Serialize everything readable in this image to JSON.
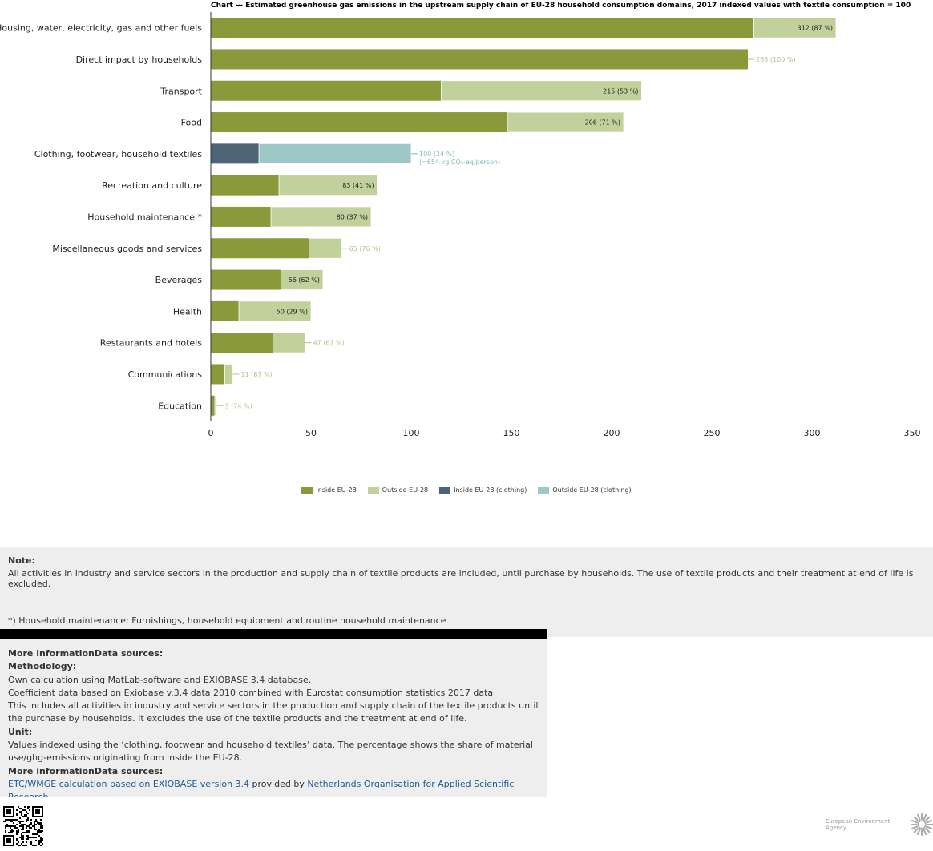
{
  "chart_data": {
    "type": "bar",
    "orientation": "horizontal",
    "stacked": true,
    "title": "Chart — Estimated greenhouse gas emissions in the upstream supply chain of EU-28 household consumption domains, 2017 indexed values with textile consumption = 100",
    "xlim": [
      0,
      350
    ],
    "x_ticks": [
      0,
      50,
      100,
      150,
      200,
      250,
      300,
      350
    ],
    "grid": false,
    "legend_position": "bottom",
    "categories": [
      "Housing, water, electricity, gas and other fuels",
      "Direct impact by households",
      "Transport",
      "Food",
      "Clothing, footwear, household textiles",
      "Recreation and culture",
      "Household maintenance *",
      "Miscellaneous goods and services",
      "Beverages",
      "Health",
      "Restaurants and hotels",
      "Communications",
      "Education"
    ],
    "series": [
      {
        "name": "Inside EU-28",
        "values": [
          271,
          268,
          115,
          148,
          null,
          34,
          30,
          49,
          35,
          14,
          31,
          7,
          2
        ]
      },
      {
        "name": "Outside EU-28",
        "values": [
          41,
          0,
          100,
          58,
          null,
          49,
          50,
          16,
          21,
          36,
          16,
          4,
          1
        ]
      },
      {
        "name": "Inside EU-28 (clothing)",
        "values": [
          null,
          null,
          null,
          null,
          24,
          null,
          null,
          null,
          null,
          null,
          null,
          null,
          null
        ]
      },
      {
        "name": "Outside EU-28 (clothing)",
        "values": [
          null,
          null,
          null,
          null,
          76,
          null,
          null,
          null,
          null,
          null,
          null,
          null,
          null
        ]
      }
    ],
    "totals": [
      312,
      268,
      215,
      206,
      100,
      83,
      80,
      65,
      56,
      50,
      47,
      11,
      3
    ],
    "data_labels": [
      "312 (87 %)",
      "268 (100 %)",
      "215 (53 %)",
      "206 (71 %)",
      "100 (24 %)",
      "83 (41 %)",
      "80 (37 %)",
      "65 (76 %)",
      "56 (62 %)",
      "50 (29 %)",
      "47 (67 %)",
      "11 (67 %)",
      "3 (74 %)"
    ],
    "label_inside": [
      true,
      false,
      true,
      true,
      false,
      true,
      true,
      false,
      true,
      true,
      false,
      false,
      false
    ],
    "annotation": "(=654 kg CO₂-eq/person)",
    "colors": {
      "inside": "#8a9a3a",
      "outside": "#c2d19c",
      "inside_clothing": "#4d6477",
      "outside_clothing": "#9ec8c8",
      "outside_label": "#b3c28a",
      "clothing_label": "#7fb8b8"
    }
  },
  "note": {
    "heading": "Note:",
    "text": "All activities in industry and service sectors in the production and supply chain of textile products are included, until purchase by households. The use of textile products and their treatment at end of life is excluded.",
    "footnote": "*) Household maintenance: Furnishings, household equipment and routine household maintenance"
  },
  "info": {
    "heading1": "More informationData sources:",
    "methodology_heading": "Methodology:",
    "methodology_1": "Own calculation using MatLab-software and EXIOBASE 3.4 database.",
    "methodology_2": "Coefficient data based on Exiobase v.3.4 data 2010 combined with Eurostat consumption statistics 2017 data",
    "methodology_3": "This includes all activities in industry and service sectors in the production and supply chain of the textile products until the purchase by households. It excludes the use of the textile products and the treatment at end of life.",
    "unit_heading": "Unit:",
    "unit_text": "Values indexed using the ‘clothing, footwear and household textiles’ data. The percentage shows the share of material use/ghg-emissions originating from inside the EU-28.",
    "heading2": "More informationData sources:",
    "source_link": "ETC/WMGE calculation based on EXIOBASE version 3.4",
    "source_mid": " provided by ",
    "source_org": "Netherlands Organisation for Applied Scientific Research"
  },
  "footer": {
    "agency_name": "European Environment Agency"
  }
}
